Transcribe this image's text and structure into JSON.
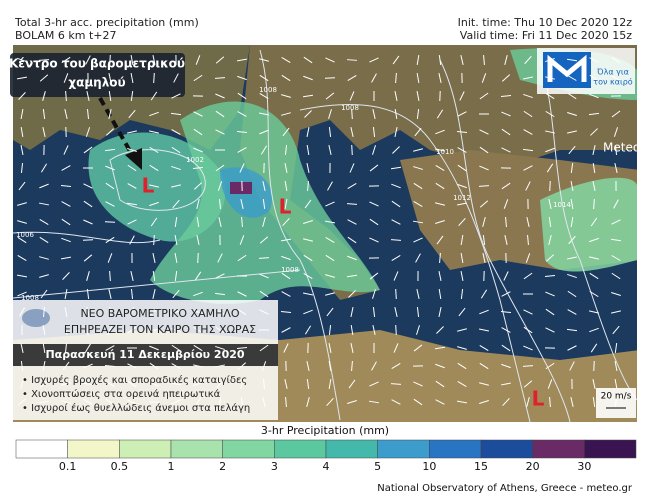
{
  "header": {
    "title": "Total 3-hr acc. precipitation (mm)",
    "model": "BOLAM 6 km t+27",
    "init": "Init. time: Thu 10 Dec 2020 12z",
    "valid": "Valid time: Fri 11 Dec 2020 15z"
  },
  "callout": [
    "Κέντρο του βαρομετρικού",
    "χαμηλού"
  ],
  "logo": {
    "tagline": [
      "Όλα για",
      "τον καιρό"
    ],
    "brand": "Meteo"
  },
  "isobars": [
    "1008",
    "1002",
    "1006",
    "1008",
    "1008",
    "1010",
    "1012",
    "1014",
    "1008"
  ],
  "lows": [
    "L",
    "L",
    "L"
  ],
  "panel": {
    "headline": [
      "ΝΕΟ ΒΑΡΟΜΕΤΡΙΚΟ ΧΑΜΗΛΟ",
      "ΕΠΗΡΕΑΖΕΙ ΤΟΝ ΚΑΙΡΟ ΤΗΣ ΧΩΡΑΣ"
    ],
    "date": "Παρασκευή 11 Δεκεμβρίου 2020",
    "bullets": [
      "• Ισχυρές βροχές και σποραδικές καταιγίδες",
      "• Χιονοπτώσεις στα ορεινά ηπειρωτικά",
      "• Ισχυροί έως θυελλώδεις άνεμοι στα πελάγη"
    ]
  },
  "wind_scale": "20 m/s",
  "colorbar": {
    "title": "3-hr Precipitation (mm)",
    "ticks": [
      0.1,
      0.5,
      1,
      2,
      3,
      4,
      5,
      10,
      15,
      20,
      30
    ],
    "colors": [
      "#ffffff",
      "#f2f6c8",
      "#cdeeb4",
      "#a8e2ac",
      "#82d6a2",
      "#5cc8a0",
      "#45b8ac",
      "#3c9ccc",
      "#2a74c4",
      "#1c4c9c",
      "#6a2a66",
      "#3a1450"
    ]
  },
  "footer": "National Observatory of Athens, Greece - meteo.gr"
}
